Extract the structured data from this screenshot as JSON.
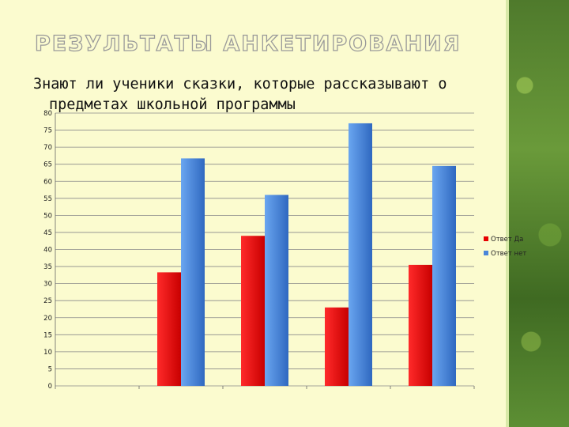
{
  "slide": {
    "title": "РЕЗУЛЬТАТЫ АНКЕТИРОВАНИЯ",
    "subtitle_line1": "Знают ли ученики сказки, которые рассказывают о",
    "subtitle_line2": "предметах школьной программы"
  },
  "colors": {
    "background": "#fbfbcf",
    "series_yes": "#e60000",
    "series_no": "#4a86d9",
    "gridline": "#8a8a8a"
  },
  "chart_data": {
    "type": "bar",
    "title": "Знают ли ученики сказки, которые рассказывают о предметах школьной программы",
    "categories": [
      "",
      "",
      "",
      "",
      ""
    ],
    "series": [
      {
        "name": "Ответ Да",
        "values": [
          null,
          33.3,
          44,
          23,
          35.5
        ]
      },
      {
        "name": "Ответ нет",
        "values": [
          null,
          66.7,
          56,
          77,
          64.5
        ]
      }
    ],
    "ylim": [
      0,
      80
    ],
    "yticks": [
      0,
      5,
      10,
      15,
      20,
      25,
      30,
      35,
      40,
      45,
      50,
      55,
      60,
      65,
      70,
      75,
      80
    ],
    "grid": true,
    "legend": "right"
  }
}
